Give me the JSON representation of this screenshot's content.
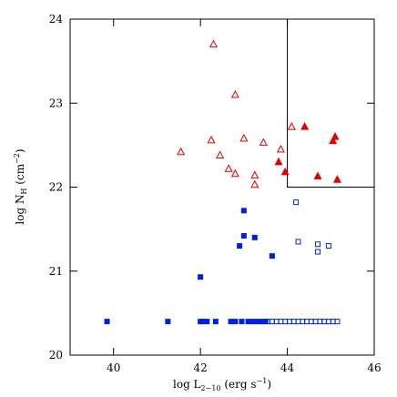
{
  "chart_data": {
    "type": "scatter",
    "xlabel": [
      "log L",
      "2−10",
      " (erg s",
      "−1",
      ")"
    ],
    "ylabel": [
      "log N",
      "H",
      " (cm",
      "−2",
      ")"
    ],
    "xlim": [
      39,
      46
    ],
    "ylim": [
      20,
      24
    ],
    "xticks": [
      40,
      42,
      44,
      46
    ],
    "yticks": [
      20,
      21,
      22,
      23,
      24
    ],
    "region": {
      "xlim": [
        44,
        46
      ],
      "ylim": [
        22,
        24
      ]
    },
    "series": [
      {
        "color": "#e00000",
        "marker": "triangle-open",
        "x": [
          41.55,
          42.3,
          42.25,
          42.8,
          42.45,
          42.65,
          42.8,
          43.0,
          43.25,
          43.25,
          43.45,
          43.85,
          44.1
        ],
        "values": [
          22.42,
          23.7,
          22.56,
          23.1,
          22.38,
          22.22,
          22.16,
          22.58,
          22.14,
          22.03,
          22.53,
          22.45,
          22.72
        ]
      },
      {
        "color": "#e00000",
        "marker": "triangle-filled",
        "x": [
          44.4,
          43.8,
          43.95,
          44.7,
          45.05,
          45.1,
          45.15
        ],
        "values": [
          22.72,
          22.3,
          22.18,
          22.13,
          22.55,
          22.6,
          22.09
        ]
      },
      {
        "color": "#0022dd",
        "marker": "square-filled",
        "x": [
          39.85,
          41.25,
          42.0,
          42.05,
          42.15,
          42.35,
          42.7,
          42.8,
          42.95,
          43.1,
          43.2,
          43.3,
          43.4,
          43.5,
          42.0,
          42.9,
          43.0,
          43.25,
          43.0,
          43.65
        ],
        "values": [
          20.4,
          20.4,
          20.4,
          20.4,
          20.4,
          20.4,
          20.4,
          20.4,
          20.4,
          20.4,
          20.4,
          20.4,
          20.4,
          20.4,
          20.93,
          21.3,
          21.42,
          21.4,
          21.72,
          21.18
        ]
      },
      {
        "color": "#0022dd",
        "marker": "square-open",
        "x": [
          43.55,
          43.65,
          43.75,
          43.85,
          43.95,
          44.05,
          44.15,
          44.25,
          44.35,
          44.45,
          44.55,
          44.65,
          44.75,
          44.85,
          44.95,
          45.05,
          45.15,
          44.2,
          44.25,
          44.7,
          44.7,
          44.95
        ],
        "values": [
          20.4,
          20.4,
          20.4,
          20.4,
          20.4,
          20.4,
          20.4,
          20.4,
          20.4,
          20.4,
          20.4,
          20.4,
          20.4,
          20.4,
          20.4,
          20.4,
          20.4,
          21.82,
          21.35,
          21.32,
          21.23,
          21.3
        ]
      }
    ]
  }
}
